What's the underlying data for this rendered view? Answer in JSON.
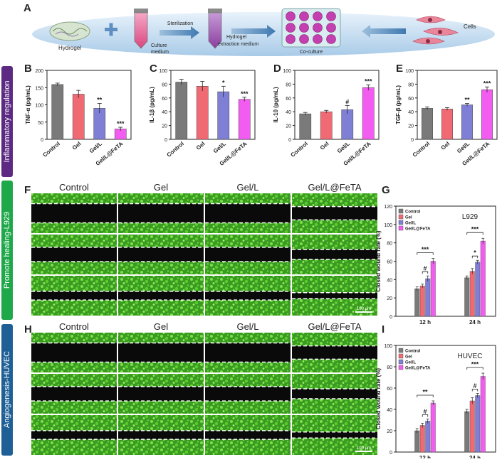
{
  "panel_letters": [
    "A",
    "B",
    "C",
    "D",
    "E",
    "F",
    "G",
    "H",
    "I"
  ],
  "side_labels": {
    "inflammatory": "Inflammatory regulation",
    "healing": "Promote healing-L929",
    "angio": "Angiogenesis-HUVEC"
  },
  "schematic": {
    "hydrogel": "Hydrogel",
    "culture_medium_1": "Culture",
    "culture_medium_2": "medium",
    "sterilization": "Sterilization",
    "extraction_1": "Hydrogel",
    "extraction_2": "extraction medium",
    "coculture": "Co-culture",
    "cells": "Cells"
  },
  "micrograph_headers": [
    "Control",
    "Gel",
    "Gel/L",
    "Gel/L@FeTA"
  ],
  "scale_bar": "100 μm",
  "colors": {
    "control": "#7a7a7a",
    "gel": "#f06a74",
    "gell": "#7f7fd6",
    "gellfeta": "#f25cf0",
    "purple_band": "#5c2a82",
    "green_band": "#1fa84a",
    "blue_band": "#1e5f96",
    "cell_green": "#2f9e1c"
  },
  "chart_data": [
    {
      "panel": "B",
      "type": "bar",
      "categories": [
        "Control",
        "Gel",
        "Gel/L",
        "Gel/L@FeTA"
      ],
      "values": [
        159,
        131,
        90,
        30
      ],
      "errors": [
        4,
        11,
        14,
        5
      ],
      "significance": [
        "",
        "",
        "**",
        "***"
      ],
      "ylabel": "TNF-α (pg/mL)",
      "ylim": [
        0,
        200
      ],
      "ticks": [
        0,
        50,
        100,
        150,
        200
      ]
    },
    {
      "panel": "C",
      "type": "bar",
      "categories": [
        "Control",
        "Gel",
        "Gel/L",
        "Gel/L@FeTA"
      ],
      "values": [
        83,
        77,
        69,
        58
      ],
      "errors": [
        4,
        7,
        8,
        3
      ],
      "significance": [
        "",
        "",
        "*",
        "***"
      ],
      "ylabel": "IL-1β (pg/mL)",
      "ylim": [
        0,
        100
      ],
      "ticks": [
        0,
        20,
        40,
        60,
        80,
        100
      ]
    },
    {
      "panel": "D",
      "type": "bar",
      "categories": [
        "Control",
        "Gel",
        "Gel/L",
        "Gel/L@FeTA"
      ],
      "values": [
        37,
        40,
        43,
        75
      ],
      "errors": [
        2,
        2,
        6,
        4
      ],
      "significance": [
        "",
        "",
        "#",
        "***"
      ],
      "ylabel": "IL-10 (pg/mL)",
      "ylim": [
        0,
        100
      ],
      "ticks": [
        0,
        20,
        40,
        60,
        80,
        100
      ]
    },
    {
      "panel": "E",
      "type": "bar",
      "categories": [
        "Control",
        "Gel",
        "Gel/L",
        "Gel/L@FeTA"
      ],
      "values": [
        45,
        44,
        50,
        72
      ],
      "errors": [
        2,
        2,
        2,
        4
      ],
      "significance": [
        "",
        "",
        "**",
        "***"
      ],
      "ylabel": "TGF-β (pg/mL)",
      "ylim": [
        0,
        100
      ],
      "ticks": [
        0,
        20,
        40,
        60,
        80,
        100
      ]
    },
    {
      "panel": "G",
      "type": "bar",
      "title": "L929",
      "categories": [
        "12 h",
        "24 h"
      ],
      "series": [
        {
          "name": "Control",
          "values": [
            30,
            42
          ],
          "errors": [
            2,
            2
          ]
        },
        {
          "name": "Gel",
          "values": [
            33,
            49
          ],
          "errors": [
            2,
            3
          ]
        },
        {
          "name": "Gel/L",
          "values": [
            41,
            59
          ],
          "errors": [
            3,
            2
          ]
        },
        {
          "name": "Gel/L@FeTA",
          "values": [
            60,
            82
          ],
          "errors": [
            3,
            3
          ]
        }
      ],
      "comparisons": [
        {
          "group": 0,
          "from": 1,
          "to": 2,
          "label": "#"
        },
        {
          "group": 0,
          "from": 0,
          "to": 3,
          "label": "***"
        },
        {
          "group": 1,
          "from": 1,
          "to": 2,
          "label": "*"
        },
        {
          "group": 1,
          "from": 0,
          "to": 3,
          "label": "***"
        }
      ],
      "ylabel": "Closed wound rate (%)",
      "ylim": [
        0,
        120
      ],
      "ticks": [
        0,
        20,
        40,
        60,
        80,
        100,
        120
      ],
      "legend": "top-left"
    },
    {
      "panel": "I",
      "type": "bar",
      "title": "HUVEC",
      "categories": [
        "12 h",
        "24 h"
      ],
      "series": [
        {
          "name": "Control",
          "values": [
            20,
            38
          ],
          "errors": [
            2,
            2
          ]
        },
        {
          "name": "Gel",
          "values": [
            25,
            48
          ],
          "errors": [
            2,
            3
          ]
        },
        {
          "name": "Gel/L",
          "values": [
            29,
            53
          ],
          "errors": [
            2,
            2
          ]
        },
        {
          "name": "Gel/L@FeTA",
          "values": [
            46,
            71
          ],
          "errors": [
            2,
            3
          ]
        }
      ],
      "comparisons": [
        {
          "group": 0,
          "from": 1,
          "to": 2,
          "label": "#"
        },
        {
          "group": 0,
          "from": 0,
          "to": 3,
          "label": "**"
        },
        {
          "group": 1,
          "from": 1,
          "to": 2,
          "label": "#"
        },
        {
          "group": 1,
          "from": 0,
          "to": 3,
          "label": "***"
        }
      ],
      "ylabel": "Closed wound rate (%)",
      "ylim": [
        0,
        100
      ],
      "ticks": [
        0,
        20,
        40,
        60,
        80,
        100
      ],
      "legend": "top-left"
    }
  ]
}
